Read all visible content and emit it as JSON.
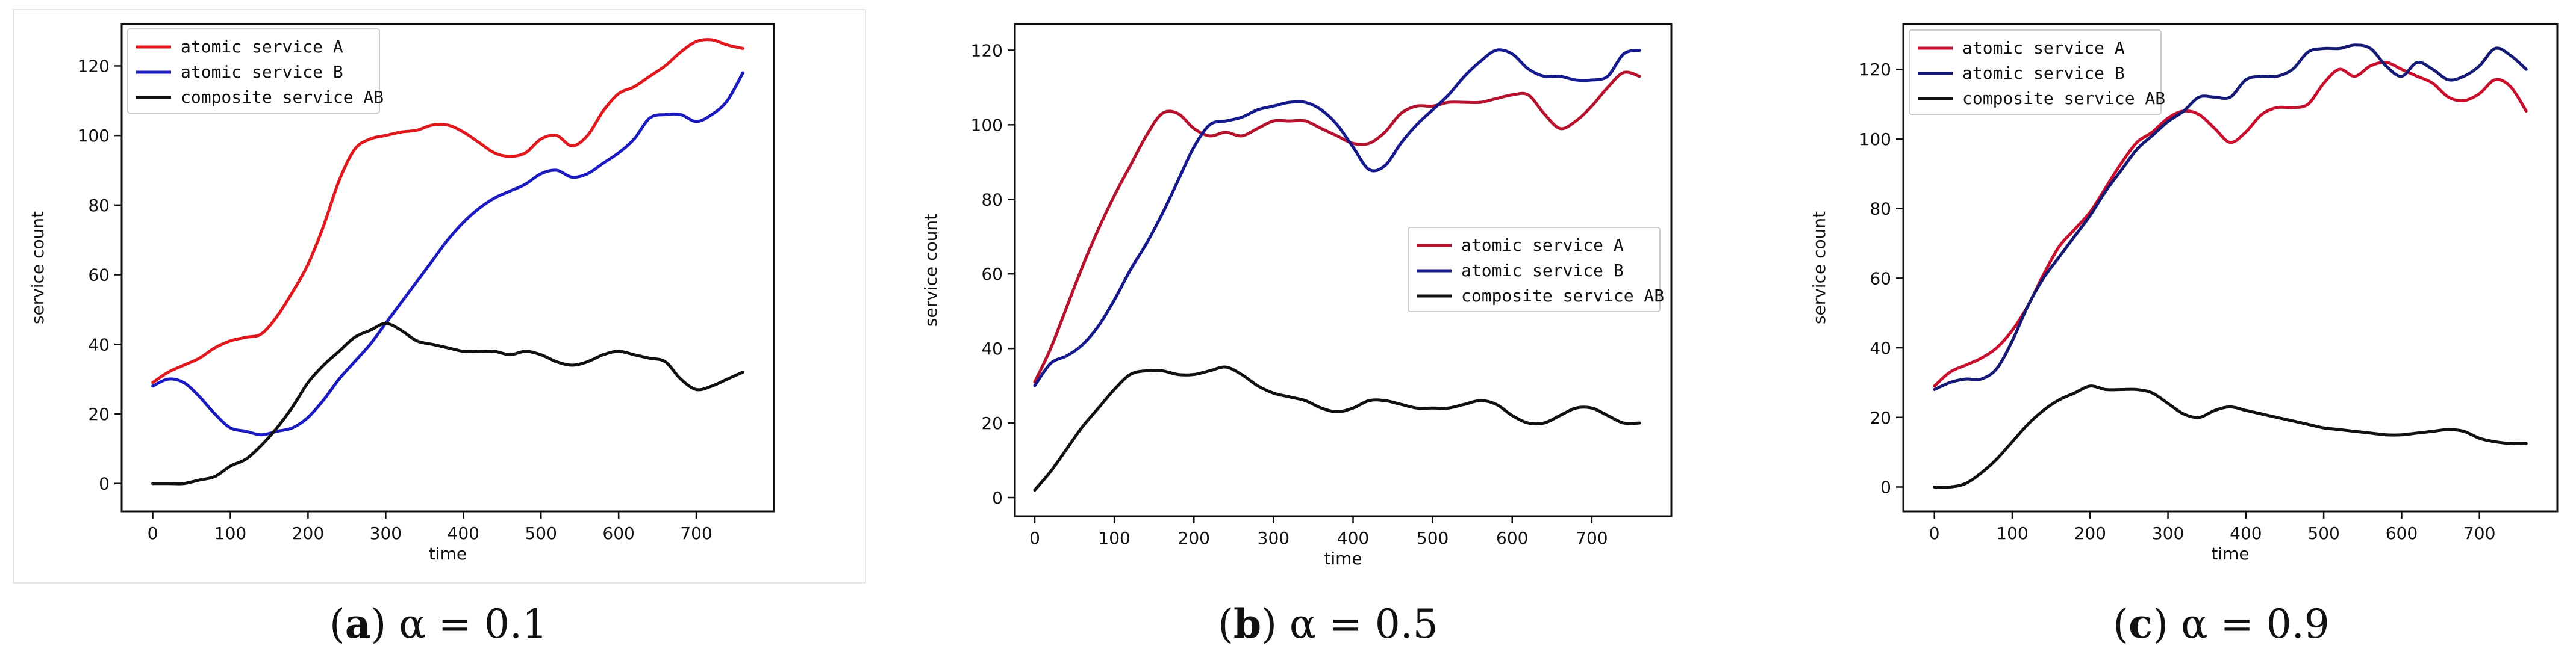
{
  "chart_data": [
    {
      "type": "line",
      "caption": {
        "letter": "a",
        "expr": "α = 0.1"
      },
      "xlabel": "time",
      "ylabel": "service count",
      "xlim": [
        -40,
        800
      ],
      "ylim": [
        -8,
        132
      ],
      "xticks": [
        0,
        100,
        200,
        300,
        400,
        500,
        600,
        700
      ],
      "yticks": [
        0,
        20,
        40,
        60,
        80,
        100,
        120
      ],
      "legend_position": "top-left",
      "series": [
        {
          "name": "atomic service A",
          "color": "#e0191f",
          "x": [
            0,
            20,
            40,
            60,
            80,
            100,
            120,
            140,
            160,
            180,
            200,
            220,
            240,
            260,
            280,
            300,
            320,
            340,
            360,
            380,
            400,
            420,
            440,
            460,
            480,
            500,
            520,
            540,
            560,
            580,
            600,
            620,
            640,
            660,
            680,
            700,
            720,
            740,
            760
          ],
          "y": [
            29,
            32,
            34,
            36,
            39,
            41,
            42,
            43,
            48,
            55,
            63,
            74,
            87,
            96,
            99,
            100,
            101,
            101.5,
            103,
            103,
            101,
            98,
            95,
            94,
            95,
            99,
            100,
            97,
            100,
            107,
            112,
            114,
            117,
            120,
            124,
            127,
            127.5,
            126,
            125
          ]
        },
        {
          "name": "atomic service B",
          "color": "#1b1bbf",
          "x": [
            0,
            20,
            40,
            60,
            80,
            100,
            120,
            140,
            160,
            180,
            200,
            220,
            240,
            260,
            280,
            300,
            320,
            340,
            360,
            380,
            400,
            420,
            440,
            460,
            480,
            500,
            520,
            540,
            560,
            580,
            600,
            620,
            640,
            660,
            680,
            700,
            720,
            740,
            760
          ],
          "y": [
            28,
            30,
            29,
            25,
            20,
            16,
            15,
            14,
            15,
            16,
            19,
            24,
            30,
            35,
            40,
            46,
            52,
            58,
            64,
            70,
            75,
            79,
            82,
            84,
            86,
            89,
            90,
            88,
            89,
            92,
            95,
            99,
            105,
            106,
            106,
            104,
            106,
            110,
            118
          ]
        },
        {
          "name": "composite service AB",
          "color": "#111111",
          "x": [
            0,
            20,
            40,
            60,
            80,
            100,
            120,
            140,
            160,
            180,
            200,
            220,
            240,
            260,
            280,
            300,
            320,
            340,
            360,
            380,
            400,
            420,
            440,
            460,
            480,
            500,
            520,
            540,
            560,
            580,
            600,
            620,
            640,
            660,
            680,
            700,
            720,
            740,
            760
          ],
          "y": [
            0,
            0,
            0,
            1,
            2,
            5,
            7,
            11,
            16,
            22,
            29,
            34,
            38,
            42,
            44,
            46,
            44,
            41,
            40,
            39,
            38,
            38,
            38,
            37,
            38,
            37,
            35,
            34,
            35,
            37,
            38,
            37,
            36,
            35,
            30,
            27,
            28,
            30,
            32
          ]
        }
      ]
    },
    {
      "type": "line",
      "caption": {
        "letter": "b",
        "expr": "α = 0.5"
      },
      "xlabel": "time",
      "ylabel": "service count",
      "xlim": [
        -25,
        800
      ],
      "ylim": [
        -5,
        127
      ],
      "xticks": [
        0,
        100,
        200,
        300,
        400,
        500,
        600,
        700
      ],
      "yticks": [
        0,
        20,
        40,
        60,
        80,
        100,
        120
      ],
      "legend_position": "center-right",
      "series": [
        {
          "name": "atomic service A",
          "color": "#b5122e",
          "x": [
            0,
            20,
            40,
            60,
            80,
            100,
            120,
            140,
            160,
            180,
            200,
            220,
            240,
            260,
            280,
            300,
            320,
            340,
            360,
            380,
            400,
            420,
            440,
            460,
            480,
            500,
            520,
            540,
            560,
            580,
            600,
            620,
            640,
            660,
            680,
            700,
            720,
            740,
            760
          ],
          "y": [
            31,
            40,
            51,
            62,
            72,
            81,
            89,
            97,
            103,
            103,
            99,
            97,
            98,
            97,
            99,
            101,
            101,
            101,
            99,
            97,
            95,
            95,
            98,
            103,
            105,
            105,
            106,
            106,
            106,
            107,
            108,
            108,
            103,
            99,
            101,
            105,
            110,
            114,
            113
          ]
        },
        {
          "name": "atomic service B",
          "color": "#161a8c",
          "x": [
            0,
            20,
            40,
            60,
            80,
            100,
            120,
            140,
            160,
            180,
            200,
            220,
            240,
            260,
            280,
            300,
            320,
            340,
            360,
            380,
            400,
            420,
            440,
            460,
            480,
            500,
            520,
            540,
            560,
            580,
            600,
            620,
            640,
            660,
            680,
            700,
            720,
            740,
            760
          ],
          "y": [
            30,
            36,
            38,
            41,
            46,
            53,
            61,
            68,
            76,
            85,
            94,
            100,
            101,
            102,
            104,
            105,
            106,
            106,
            104,
            100,
            94,
            88,
            89,
            95,
            100,
            104,
            108,
            113,
            117,
            120,
            119,
            115,
            113,
            113,
            112,
            112,
            113,
            119,
            120
          ]
        },
        {
          "name": "composite service AB",
          "color": "#111111",
          "x": [
            0,
            20,
            40,
            60,
            80,
            100,
            120,
            140,
            160,
            180,
            200,
            220,
            240,
            260,
            280,
            300,
            320,
            340,
            360,
            380,
            400,
            420,
            440,
            460,
            480,
            500,
            520,
            540,
            560,
            580,
            600,
            620,
            640,
            660,
            680,
            700,
            720,
            740,
            760
          ],
          "y": [
            2,
            7,
            13,
            19,
            24,
            29,
            33,
            34,
            34,
            33,
            33,
            34,
            35,
            33,
            30,
            28,
            27,
            26,
            24,
            23,
            24,
            26,
            26,
            25,
            24,
            24,
            24,
            25,
            26,
            25,
            22,
            20,
            20,
            22,
            24,
            24,
            22,
            20,
            20
          ]
        }
      ]
    },
    {
      "type": "line",
      "caption": {
        "letter": "c",
        "expr": "α = 0.9"
      },
      "xlabel": "time",
      "ylabel": "service count",
      "xlim": [
        -40,
        800
      ],
      "ylim": [
        -7,
        133
      ],
      "xticks": [
        0,
        100,
        200,
        300,
        400,
        500,
        600,
        700
      ],
      "yticks": [
        0,
        20,
        40,
        60,
        80,
        100,
        120
      ],
      "legend_position": "top-left",
      "series": [
        {
          "name": "atomic service A",
          "color": "#c8102e",
          "x": [
            0,
            20,
            40,
            60,
            80,
            100,
            120,
            140,
            160,
            180,
            200,
            220,
            240,
            260,
            280,
            300,
            320,
            340,
            360,
            380,
            400,
            420,
            440,
            460,
            480,
            500,
            520,
            540,
            560,
            580,
            600,
            620,
            640,
            660,
            680,
            700,
            720,
            740,
            760
          ],
          "y": [
            29,
            33,
            35,
            37,
            40,
            45,
            52,
            61,
            69,
            74,
            79,
            86,
            93,
            99,
            102,
            106,
            108,
            107,
            103,
            99,
            102,
            107,
            109,
            109,
            110,
            116,
            120,
            118,
            121,
            122,
            120,
            118,
            116,
            112,
            111,
            113,
            117,
            115,
            108
          ]
        },
        {
          "name": "atomic service B",
          "color": "#151a75",
          "x": [
            0,
            20,
            40,
            60,
            80,
            100,
            120,
            140,
            160,
            180,
            200,
            220,
            240,
            260,
            280,
            300,
            320,
            340,
            360,
            380,
            400,
            420,
            440,
            460,
            480,
            500,
            520,
            540,
            560,
            580,
            600,
            620,
            640,
            660,
            680,
            700,
            720,
            740,
            760
          ],
          "y": [
            28,
            30,
            31,
            31,
            34,
            42,
            52,
            60,
            66,
            72,
            78,
            85,
            91,
            97,
            101,
            105,
            108,
            112,
            112,
            112,
            117,
            118,
            118,
            120,
            125,
            126,
            126,
            127,
            126,
            121,
            118,
            122,
            120,
            117,
            118,
            121,
            126,
            124,
            120
          ]
        },
        {
          "name": "composite service AB",
          "color": "#111111",
          "x": [
            0,
            20,
            40,
            60,
            80,
            100,
            120,
            140,
            160,
            180,
            200,
            220,
            240,
            260,
            280,
            300,
            320,
            340,
            360,
            380,
            400,
            420,
            440,
            460,
            480,
            500,
            520,
            540,
            560,
            580,
            600,
            620,
            640,
            660,
            680,
            700,
            720,
            740,
            760
          ],
          "y": [
            0,
            0,
            1,
            4,
            8,
            13,
            18,
            22,
            25,
            27,
            29,
            28,
            28,
            28,
            27,
            24,
            21,
            20,
            22,
            23,
            22,
            21,
            20,
            19,
            18,
            17,
            16.5,
            16,
            15.5,
            15,
            15,
            15.5,
            16,
            16.5,
            16,
            14,
            13,
            12.5,
            12.5
          ]
        }
      ]
    }
  ]
}
